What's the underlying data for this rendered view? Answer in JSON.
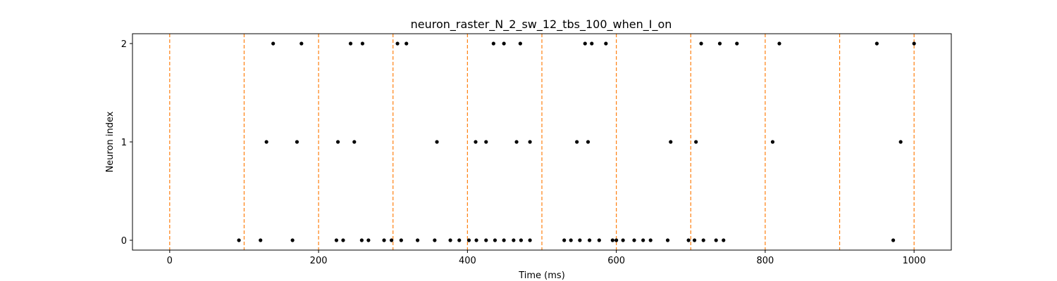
{
  "chart_data": {
    "type": "scatter",
    "title": "neuron_raster_N_2_sw_12_tbs_100_when_I_on",
    "xlabel": "Time (ms)",
    "ylabel": "Neuron index",
    "xlim": [
      -50,
      1050
    ],
    "ylim": [
      -0.1,
      2.1
    ],
    "xticks": [
      0,
      200,
      400,
      600,
      800,
      1000
    ],
    "yticks": [
      0,
      1,
      2
    ],
    "grid": false,
    "marker_color": "#000000",
    "vline_color": "#ff7f0e",
    "vlines_x": [
      0,
      100,
      200,
      300,
      400,
      500,
      600,
      700,
      800,
      900,
      1000
    ],
    "series": [
      {
        "neuron": 0,
        "x": [
          93,
          122,
          165,
          224,
          233,
          258,
          267,
          288,
          298,
          311,
          333,
          356,
          377,
          389,
          402,
          412,
          425,
          437,
          449,
          462,
          472,
          484,
          530,
          539,
          551,
          564,
          577,
          595,
          600,
          609,
          624,
          636,
          646,
          669,
          697,
          705,
          717,
          734,
          744,
          972
        ]
      },
      {
        "neuron": 1,
        "x": [
          130,
          171,
          226,
          248,
          359,
          411,
          425,
          466,
          484,
          547,
          562,
          673,
          707,
          810,
          982
        ]
      },
      {
        "neuron": 2,
        "x": [
          139,
          177,
          243,
          259,
          306,
          318,
          435,
          449,
          471,
          558,
          567,
          586,
          714,
          739,
          762,
          819,
          950,
          1000
        ]
      }
    ]
  }
}
